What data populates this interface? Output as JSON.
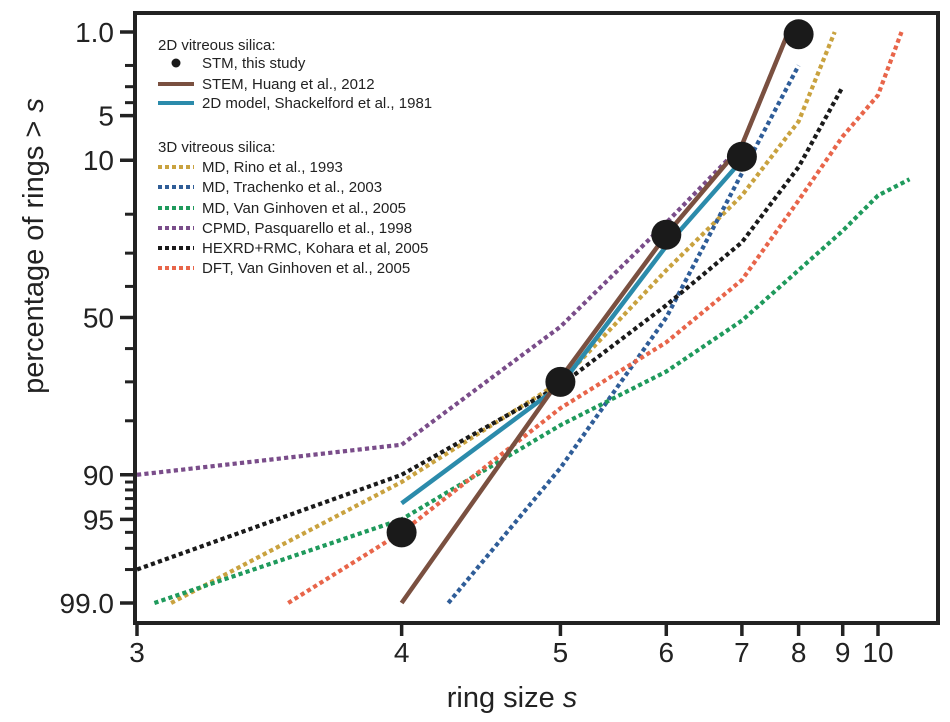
{
  "chart_data": {
    "type": "line",
    "xlabel_main": "ring size ",
    "xlabel_var": "s",
    "ylabel_main": "percentage of rings > ",
    "ylabel_var": "s",
    "x_scale": "reciprocal",
    "y_scale": "probability",
    "xlim": [
      3,
      11.1
    ],
    "ylim": [
      0.6,
      99.3
    ],
    "x_ticks": [
      3,
      4,
      5,
      6,
      7,
      8,
      9,
      10
    ],
    "x_tick_labels": [
      "3",
      "4",
      "5",
      "6",
      "7",
      "8",
      "9",
      "10"
    ],
    "y_ticks": [
      1,
      5,
      10,
      50,
      90,
      95,
      99
    ],
    "y_tick_labels": [
      "1.0",
      "5",
      "10",
      "50",
      "90",
      "95",
      "99.0"
    ],
    "y_minor_ticks": [
      2,
      3,
      4,
      20,
      30,
      40,
      60,
      70,
      80,
      91,
      92,
      93,
      94,
      96,
      97,
      98
    ],
    "grid": false,
    "legend_position": "top-left",
    "legend_groups": [
      "2D vitreous silica:",
      "3D vitreous silica:"
    ],
    "series": [
      {
        "name": "STM, this study",
        "group": 0,
        "style": "marker",
        "color": "#1a1a1a",
        "points": [
          [
            4,
            96
          ],
          [
            5,
            70
          ],
          [
            6,
            25
          ],
          [
            7,
            9.5
          ],
          [
            8,
            1.05
          ]
        ]
      },
      {
        "name": "STEM, Huang et al., 2012",
        "group": 0,
        "style": "solid",
        "color": "#7a5040",
        "points": [
          [
            4,
            99
          ],
          [
            5,
            69
          ],
          [
            6,
            25
          ],
          [
            7,
            8
          ],
          [
            7.8,
            1
          ]
        ]
      },
      {
        "name": "2D model, Shackelford et al., 1981",
        "group": 0,
        "style": "solid",
        "color": "#2b8bab",
        "points": [
          [
            4,
            93.5
          ],
          [
            5,
            71
          ],
          [
            6,
            28
          ],
          [
            7,
            10
          ]
        ]
      },
      {
        "name": "MD, Rino et al., 1993",
        "group": 1,
        "style": "dotted",
        "color": "#c9a23f",
        "points": [
          [
            3.1,
            99
          ],
          [
            4,
            91
          ],
          [
            5,
            70
          ],
          [
            6,
            35
          ],
          [
            7,
            16
          ],
          [
            8,
            5.5
          ],
          [
            8.8,
            1
          ]
        ]
      },
      {
        "name": "MD, Trachenko et al., 2003",
        "group": 1,
        "style": "dotted",
        "color": "#2f5d98",
        "points": [
          [
            4.25,
            99
          ],
          [
            5,
            89
          ],
          [
            6,
            50
          ],
          [
            7,
            12
          ],
          [
            8,
            2
          ]
        ]
      },
      {
        "name": "MD, Van Ginhoven et al., 2005",
        "group": 1,
        "style": "dotted",
        "color": "#1f9a5c",
        "points": [
          [
            3.05,
            99
          ],
          [
            4,
            95
          ],
          [
            5,
            81
          ],
          [
            6,
            67
          ],
          [
            7,
            51
          ],
          [
            8,
            35
          ],
          [
            9,
            24
          ],
          [
            10,
            16
          ],
          [
            11.1,
            13
          ]
        ]
      },
      {
        "name": "CPMD, Pasquarello et al., 1998",
        "group": 1,
        "style": "dotted",
        "color": "#7a4d8a",
        "points": [
          [
            3,
            90
          ],
          [
            4,
            85
          ],
          [
            5,
            53
          ],
          [
            6,
            22
          ],
          [
            7,
            8
          ],
          [
            7.8,
            1
          ]
        ]
      },
      {
        "name": "HEXRD+RMC, Kohara et al, 2005",
        "group": 1,
        "style": "dotted",
        "color": "#1a1a1a",
        "points": [
          [
            3,
            98
          ],
          [
            4,
            90
          ],
          [
            5,
            71
          ],
          [
            6,
            46
          ],
          [
            7,
            27
          ],
          [
            8,
            11
          ],
          [
            9,
            3
          ]
        ]
      },
      {
        "name": "DFT, Van Ginhoven et al., 2005",
        "group": 1,
        "style": "dotted",
        "color": "#e8654a",
        "points": [
          [
            3.5,
            99
          ],
          [
            4,
            96
          ],
          [
            5,
            77
          ],
          [
            6,
            58
          ],
          [
            7,
            38
          ],
          [
            8,
            17
          ],
          [
            9,
            7
          ],
          [
            10,
            3.5
          ],
          [
            10.8,
            1
          ]
        ]
      }
    ]
  }
}
